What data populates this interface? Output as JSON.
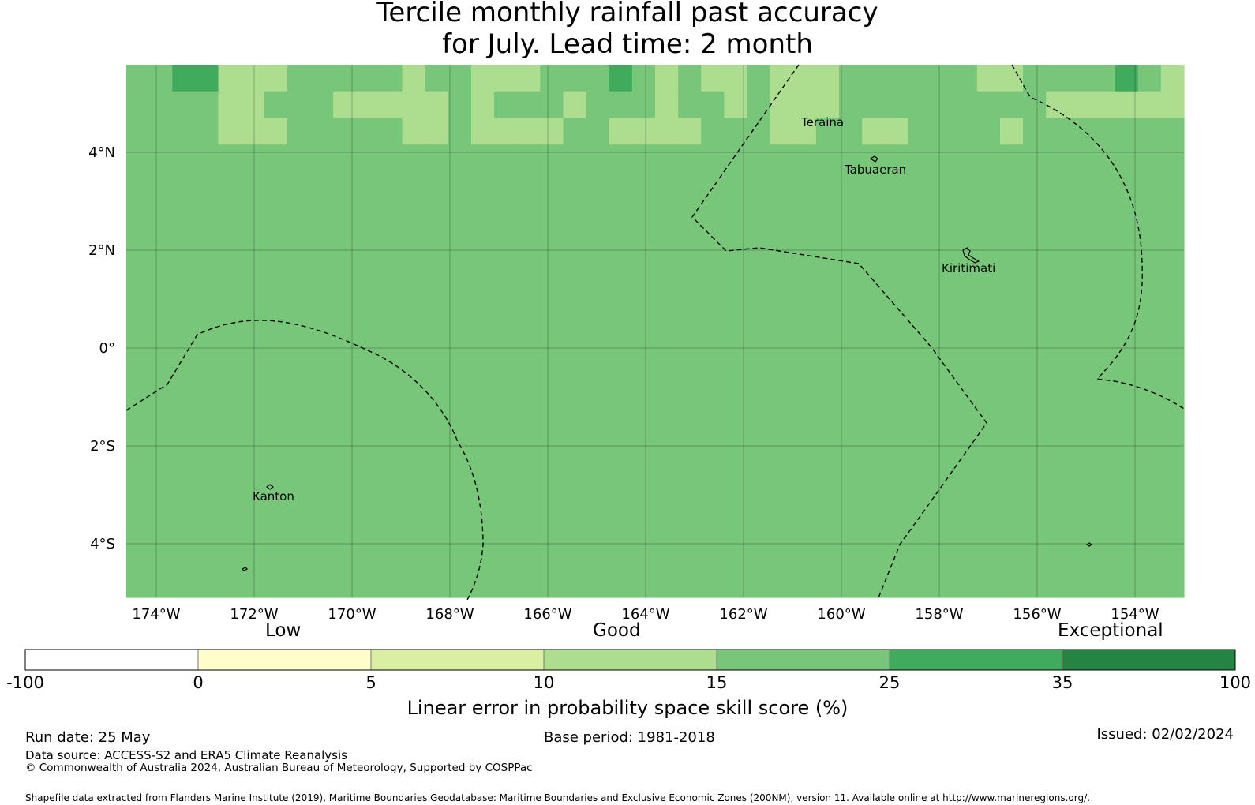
{
  "title": {
    "line1": "Tercile monthly rainfall past accuracy",
    "line2": "for July. Lead time: 2 month"
  },
  "map": {
    "lon_labels": [
      "174°W",
      "172°W",
      "170°W",
      "168°W",
      "166°W",
      "164°W",
      "162°W",
      "160°W",
      "158°W",
      "156°W",
      "154°W"
    ],
    "lat_labels": [
      "4°N",
      "2°N",
      "0°",
      "2°S",
      "4°S"
    ],
    "places": {
      "teraina": "Teraina",
      "tabuaeran": "Tabuaeran",
      "kiritimati": "Kiritimati",
      "kanton": "Kanton"
    },
    "skill_grid": [
      "4455333444443443334445434334333444444334444543",
      "4444334443333343444344434434333444444444333333",
      "4444333444443343333443333444334433444434444444",
      "4444444444444444444444444444444444444444444444",
      "4444444444444444444444444444444444444444444444",
      "4444444444444444444444444444444444444444444444",
      "4444444444444444444444444444444444444444444444",
      "4444444444444444444444444444444444444444444444",
      "4444444444444444444444444444444444444444444444",
      "4444444444444444444444444444444444444444444444",
      "4444444444444444444444444444444444444444444444",
      "4444444444444444444444444444444444444444444444",
      "4444444444444444444444444444444444444444444444",
      "4444444444444444444444444444444444444444444444",
      "4444444444444444444444444444444444444444444444",
      "4444444444444444444444444444444444444444444444",
      "4444444444444444444444444444444444444444444444",
      "4444444444444444444444444444444444444444444444",
      "4444444444444444444444444444444444444444444444",
      "4444444444444444444444444444444444444444444444"
    ]
  },
  "colorbar": {
    "categories": {
      "low": "Low",
      "good": "Good",
      "exceptional": "Exceptional"
    },
    "ticks": [
      "-100",
      "0",
      "5",
      "10",
      "15",
      "25",
      "35",
      "100"
    ],
    "colors": [
      "#ffffff",
      "#ffffcc",
      "#d9f0a3",
      "#addd8e",
      "#78c679",
      "#41ab5d",
      "#238443"
    ],
    "label": "Linear error in probability space skill score (%)"
  },
  "footer": {
    "run_date": "Run date: 25 May",
    "base_period": "Base period: 1981-2018",
    "issued": "Issued: 02/02/2024",
    "data_source": "Data source: ACCESS-S2 and ERA5 Climate Reanalysis",
    "copyright": "© Commonwealth of Australia 2024, Australian Bureau of Meteorology, Supported by COSPPac",
    "shapefile": "Shapefile data extracted from Flanders Marine Institute (2019), Maritime Boundaries Geodatabase: Maritime Boundaries and Exclusive Economic Zones (200NM), version 11. Available online at http://www.marineregions.org/."
  }
}
